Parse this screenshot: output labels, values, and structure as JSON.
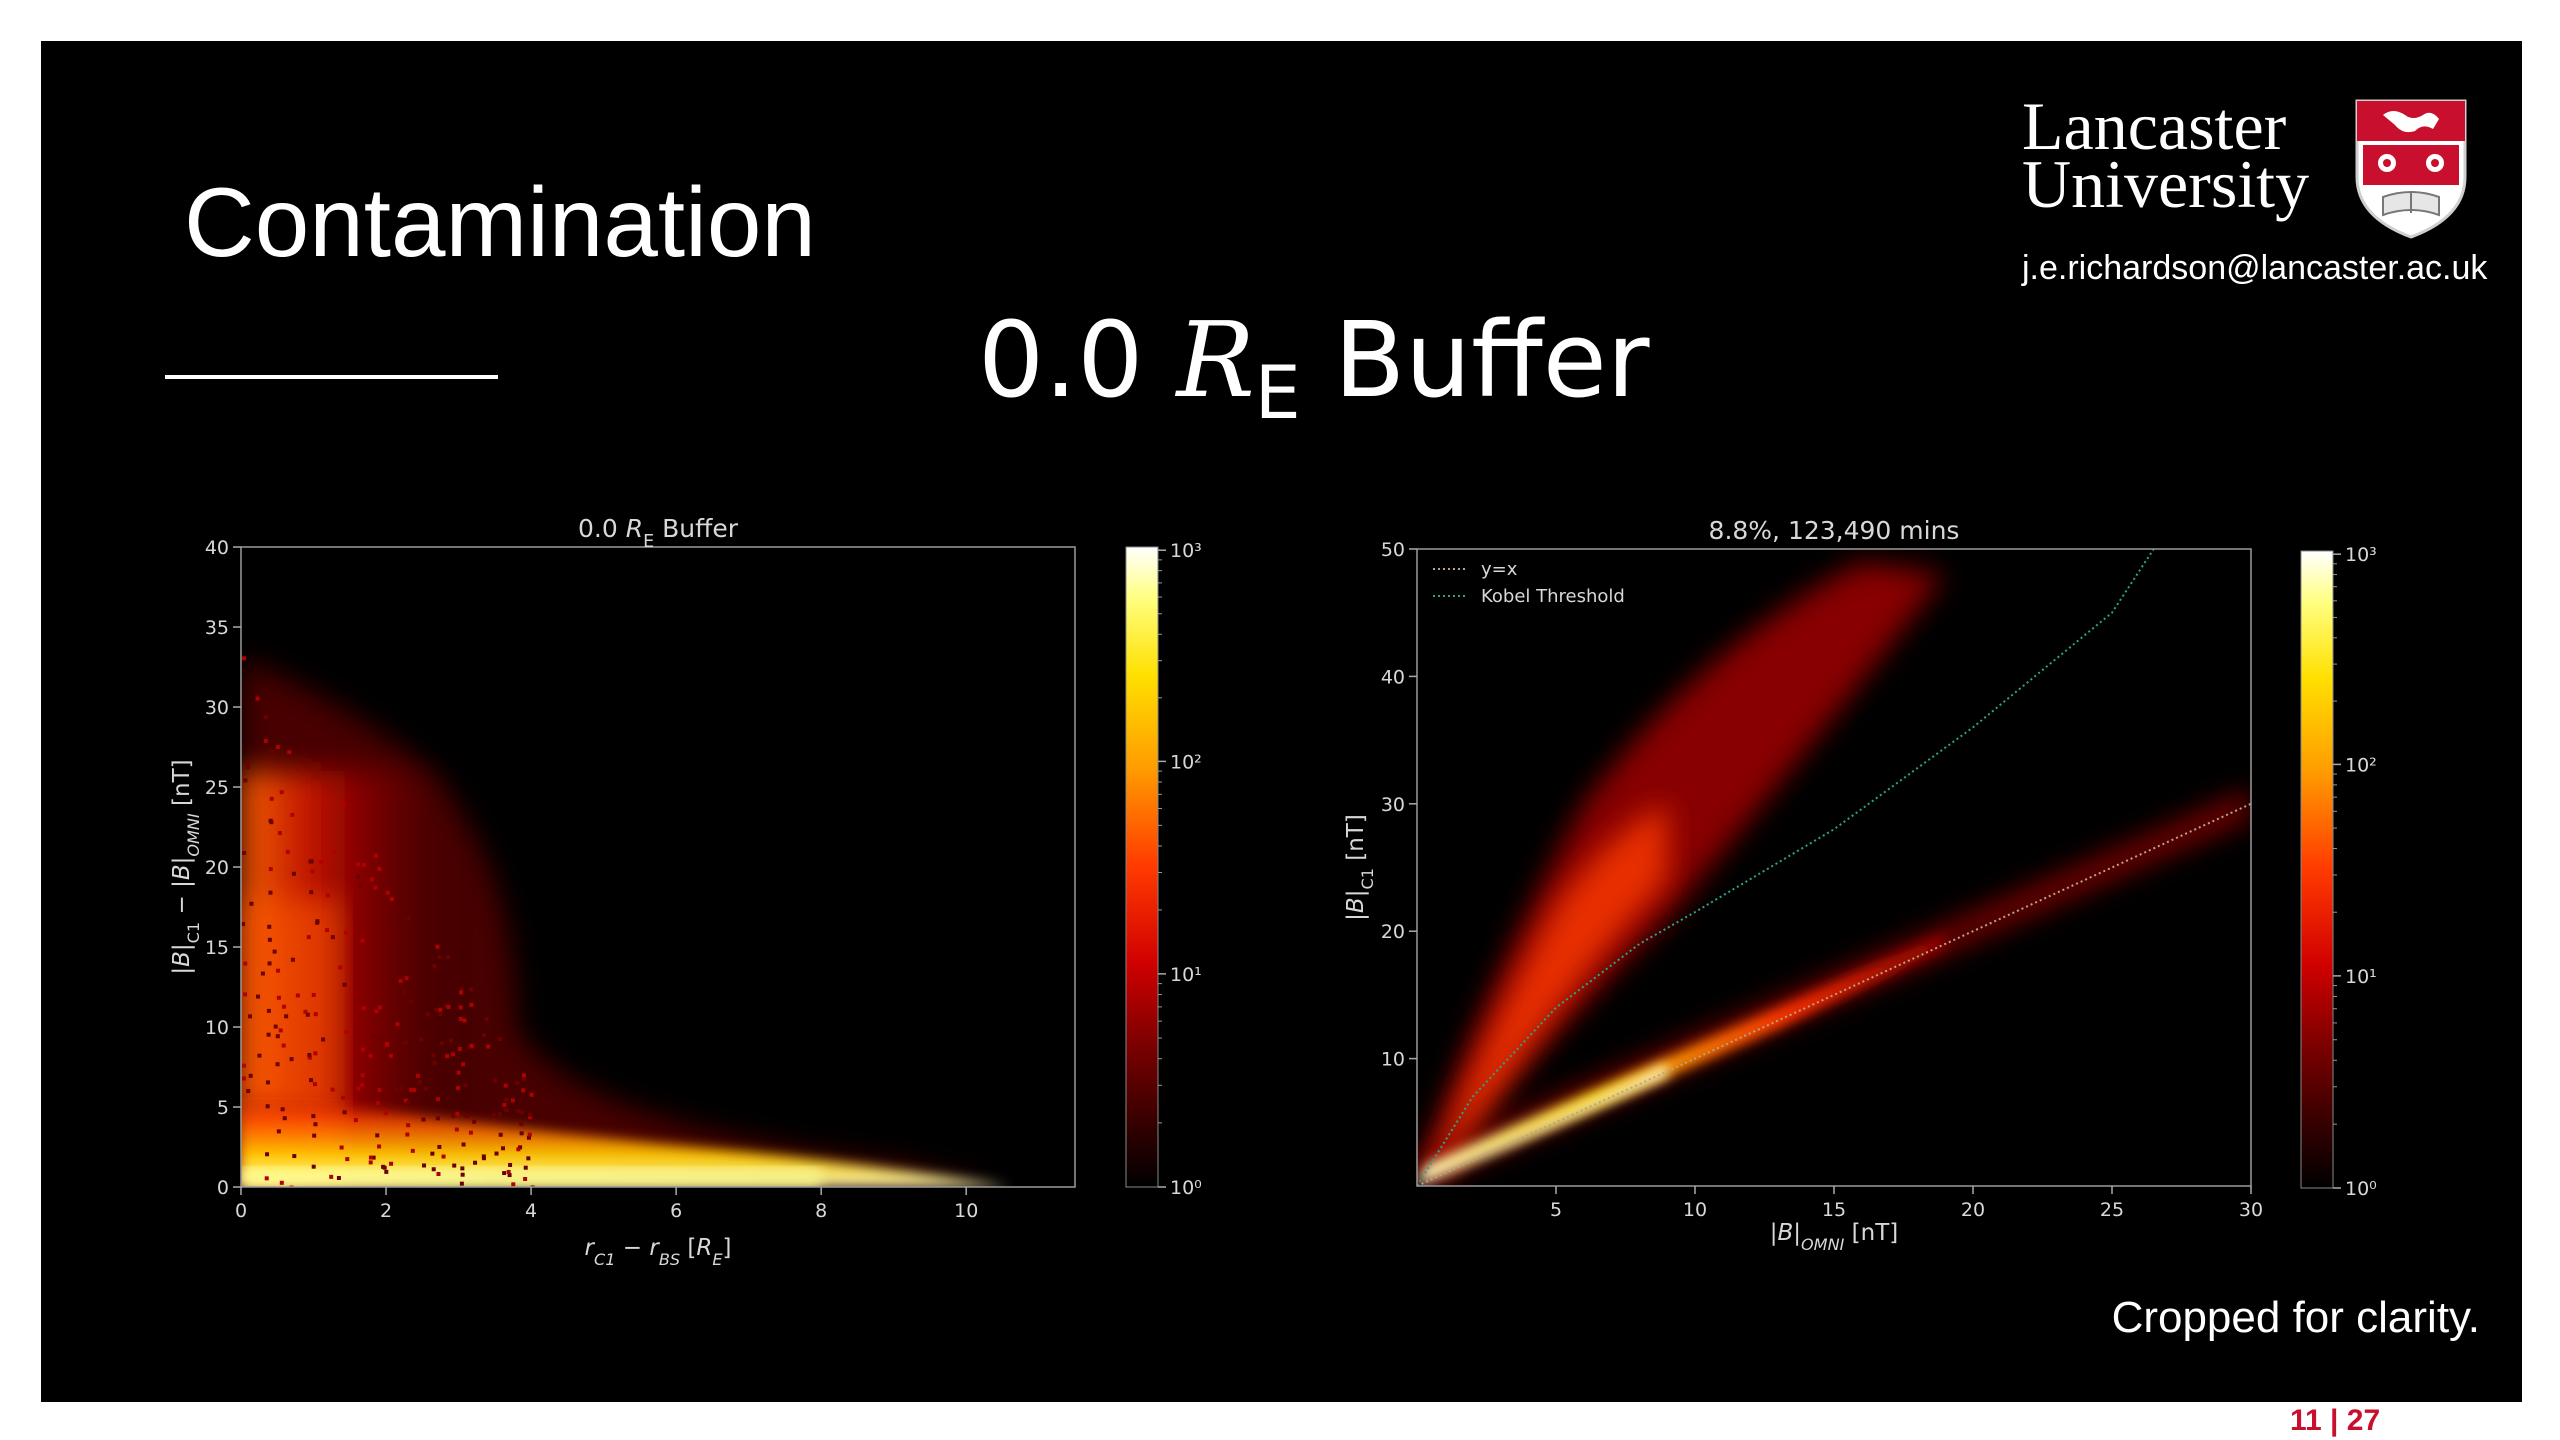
{
  "slide": {
    "title": "Contamination",
    "subtitle_main": "0.0 ",
    "subtitle_var": "R",
    "subtitle_sub": "E",
    "subtitle_rest": " Buffer",
    "logo_line1": "Lancaster",
    "logo_line2": "University",
    "email": "j.e.richardson@lancaster.ac.uk",
    "note": "Cropped for clarity.",
    "page_current": "11",
    "page_total": "27",
    "colors": {
      "background": "#000000",
      "text": "#ffffff",
      "page_number": "#c8102e",
      "shield_red": "#c8102e"
    }
  },
  "chart_data": [
    {
      "type": "heatmap",
      "title": "0.0 R_E Buffer",
      "title_plain": "0.0 ",
      "title_var": "R",
      "title_sub": "E",
      "title_rest": " Buffer",
      "xlabel": "r_C1 − r_BS [R_E]",
      "ylabel": "|B|_C1 − |B|_OMNI [nT]",
      "xlim": [
        0,
        11.5
      ],
      "ylim": [
        0,
        40
      ],
      "xticks": [
        0,
        2,
        4,
        6,
        8,
        10
      ],
      "yticks": [
        0,
        5,
        10,
        15,
        20,
        25,
        30,
        35,
        40
      ],
      "colorbar": {
        "scale": "log",
        "ticks": [
          "10⁰",
          "10¹",
          "10²",
          "10³"
        ],
        "cmap": "hot"
      },
      "density_regions": [
        {
          "x_range": [
            0,
            10.5
          ],
          "y_range": [
            0,
            2
          ],
          "peak_count": 3000
        },
        {
          "x_range": [
            0,
            2
          ],
          "y_range": [
            0,
            20
          ],
          "peak_count": 200
        },
        {
          "x_range": [
            0,
            3.8
          ],
          "y_range": [
            0,
            32
          ],
          "peak_count": 10
        }
      ]
    },
    {
      "type": "heatmap",
      "title": "8.8%, 123,490 mins",
      "xlabel": "|B|_OMNI [nT]",
      "ylabel": "|B|_C1 [nT]",
      "xlim": [
        0,
        30
      ],
      "ylim": [
        0,
        50
      ],
      "xticks": [
        5,
        10,
        15,
        20,
        25,
        30
      ],
      "yticks": [
        10,
        20,
        30,
        40,
        50
      ],
      "legend_position": "top-left",
      "colorbar": {
        "scale": "log",
        "ticks": [
          "10⁰",
          "10¹",
          "10²",
          "10³"
        ],
        "cmap": "hot"
      },
      "series": [
        {
          "name": "y=x",
          "style": "dotted",
          "color": "#b9a38a",
          "x": [
            0,
            30
          ],
          "y": [
            0,
            30
          ]
        },
        {
          "name": "Kobel Threshold",
          "style": "dotted",
          "color": "#2fa38a",
          "x": [
            0,
            2,
            5,
            8,
            10,
            15,
            20,
            25,
            26.5
          ],
          "y": [
            0,
            7,
            14,
            19,
            21.5,
            28,
            36,
            45,
            50
          ]
        }
      ],
      "density_regions": [
        {
          "x_range": [
            0,
            30
          ],
          "y_range": [
            0,
            30
          ],
          "description": "along y=x",
          "peak_count": 2000
        },
        {
          "x_range": [
            0,
            20
          ],
          "y_range": [
            0,
            48
          ],
          "description": "above threshold",
          "peak_count": 50
        }
      ]
    }
  ]
}
